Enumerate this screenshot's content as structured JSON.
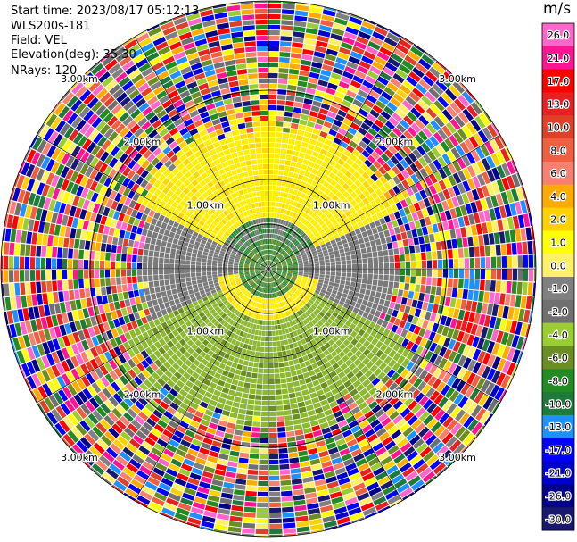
{
  "header": {
    "start_time": "Start time: 2023/08/17 05:12:13",
    "station": "WLS200s-181",
    "field": "Field: VEL",
    "elevation": "Elevation(deg): 35.30",
    "nrays": "NRays: 120"
  },
  "colorbar": {
    "unit": "m/s",
    "ticks": [
      "26.0",
      "21.0",
      "17.0",
      "13.0",
      "10.0",
      "8.0",
      "6.0",
      "4.0",
      "2.0",
      "1.0",
      "0.0",
      "-1.0",
      "-2.0",
      "-4.0",
      "-6.0",
      "-8.0",
      "-10.0",
      "-13.0",
      "-17.0",
      "-21.0",
      "-26.0",
      "-30.0"
    ],
    "colors": [
      "#ff66cc",
      "#ff1493",
      "#ff0000",
      "#e82020",
      "#e0402a",
      "#f06040",
      "#f88070",
      "#ffaa00",
      "#ffd000",
      "#ffff00",
      "#fff066",
      "#808080",
      "#707070",
      "#9acd32",
      "#6b8e23",
      "#228b22",
      "#1e7a3a",
      "#1e90ff",
      "#0000ff",
      "#0000cd",
      "#00008b",
      "#191970"
    ]
  },
  "chart_data": {
    "type": "ppi",
    "field": "VEL",
    "unit": "m/s",
    "elevation_deg": 35.3,
    "n_rays": 120,
    "range_ring_labels": [
      "1.00km",
      "2.00km",
      "3.00km"
    ],
    "inner_pattern": {
      "near_center": "green (approximately -4 to -6 m/s)",
      "north_sector": "yellow (approximately 1 to 4 m/s)",
      "south_sector": "olive green (approximately -2 to -4 m/s)",
      "east_west": "gray (approximately 0 m/s)"
    },
    "outer_region": "noise (all colors)"
  }
}
